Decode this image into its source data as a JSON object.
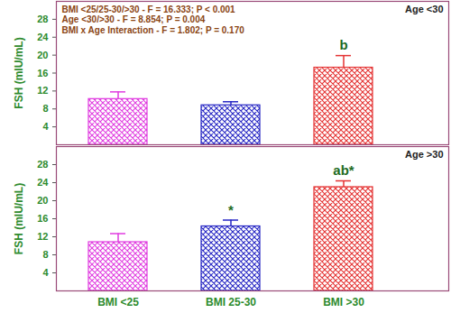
{
  "chart_data": [
    {
      "type": "bar",
      "title": "Age <30",
      "annotations": [
        "BMI <25/25-30/>30 - F = 16.333; P < 0.001",
        "Age <30/>30 - F = 8.854; P = 0.004",
        "BMI x Age Interaction - F = 1.802; P = 0.170"
      ],
      "categories": [
        "BMI <25",
        "BMI 25-30",
        "BMI >30"
      ],
      "values": [
        10.2,
        8.8,
        17.2
      ],
      "errors": [
        1.6,
        0.8,
        2.7
      ],
      "bar_labels": [
        null,
        null,
        "b"
      ],
      "colors": [
        "#e03ce0",
        "#2626c4",
        "#e43232"
      ],
      "ylabel": "FSH (mIU/mL)",
      "ylim": [
        0,
        32
      ],
      "yticks": [
        4,
        8,
        12,
        16,
        20,
        24,
        28
      ],
      "tick_labels": "y"
    },
    {
      "type": "bar",
      "title": "Age >30",
      "categories": [
        "BMI <25",
        "BMI 25-30",
        "BMI >30"
      ],
      "values": [
        10.8,
        14.3,
        23.0
      ],
      "errors": [
        1.9,
        1.4,
        1.4
      ],
      "bar_labels": [
        null,
        "*",
        "ab*"
      ],
      "colors": [
        "#e03ce0",
        "#2626c4",
        "#e43232"
      ],
      "ylabel": "FSH (mIU/mL)",
      "ylim": [
        0,
        32
      ],
      "yticks": [
        4,
        8,
        12,
        16,
        20,
        24,
        28
      ]
    }
  ]
}
